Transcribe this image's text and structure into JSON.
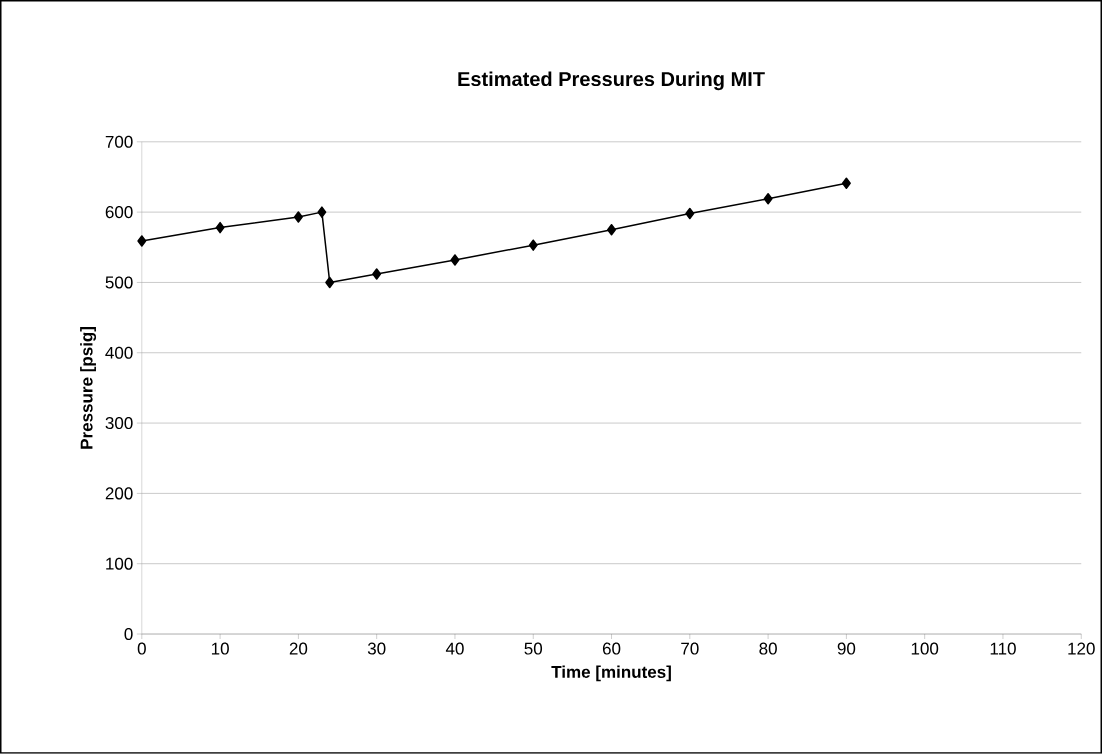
{
  "chart_data": {
    "type": "line",
    "title": "Estimated Pressures During MIT",
    "xlabel": "Time [minutes]",
    "ylabel": "Pressure [psig]",
    "x": [
      0,
      10,
      20,
      23,
      24,
      30,
      40,
      50,
      60,
      70,
      80,
      90
    ],
    "values": [
      559,
      578,
      593,
      600,
      500,
      512,
      532,
      553,
      575,
      598,
      619,
      641
    ],
    "color": "#000000",
    "marker": "diamond",
    "line_style": "solid",
    "grid": "y",
    "xlim": [
      0,
      120
    ],
    "xticks": [
      0,
      10,
      20,
      30,
      40,
      50,
      60,
      70,
      80,
      90,
      100,
      110,
      120
    ],
    "ylim": [
      0,
      700
    ],
    "yticks": [
      0,
      100,
      200,
      300,
      400,
      500,
      600,
      700
    ]
  }
}
